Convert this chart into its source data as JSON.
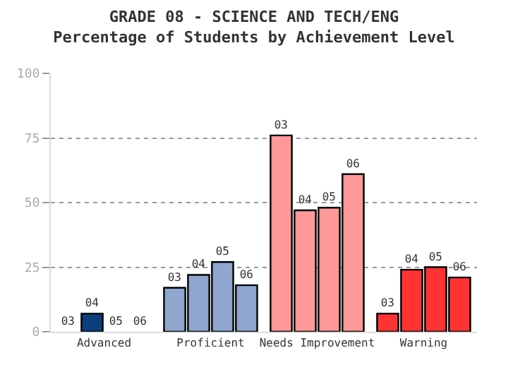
{
  "chart_data": {
    "type": "bar",
    "title": "GRADE 08 - SCIENCE AND TECH/ENG",
    "subtitle": "Percentage of Students by Achievement Level",
    "categories": [
      "Advanced",
      "Proficient",
      "Needs Improvement",
      "Warning"
    ],
    "series": [
      {
        "name": "03",
        "colors": [
          "#0d3f7f",
          "#8fa7cf",
          "#ff9999",
          "#ff3333"
        ],
        "values": [
          0,
          17,
          76,
          7
        ]
      },
      {
        "name": "04",
        "colors": [
          "#0d3f7f",
          "#8fa7cf",
          "#ff9999",
          "#ff3333"
        ],
        "values": [
          7,
          22,
          47,
          24
        ]
      },
      {
        "name": "05",
        "colors": [
          "#0d3f7f",
          "#8fa7cf",
          "#ff9999",
          "#ff3333"
        ],
        "values": [
          0,
          27,
          48,
          25
        ]
      },
      {
        "name": "06",
        "colors": [
          "#0d3f7f",
          "#8fa7cf",
          "#ff9999",
          "#ff3333"
        ],
        "values": [
          0,
          18,
          61,
          21
        ]
      }
    ],
    "ylim": [
      0,
      100
    ],
    "yticks": [
      0,
      25,
      50,
      75,
      100
    ],
    "grid": "y",
    "legend": false
  }
}
